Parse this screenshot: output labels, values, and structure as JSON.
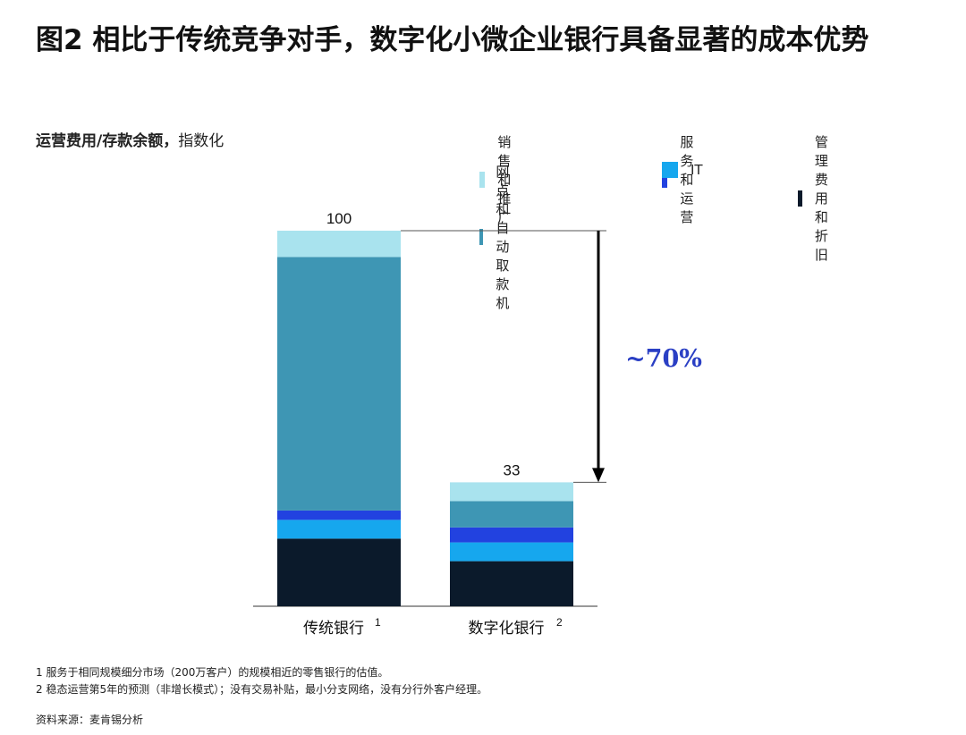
{
  "title": "图2 相比于传统竞争对手，数字化小微企业银行具备显著的成本优势",
  "subtitle_bold": "运营费用/存款余额，",
  "subtitle_rest": "指数化",
  "legend": [
    {
      "label": "销售和推广",
      "color": "#a9e3ee"
    },
    {
      "label": "服务和运营",
      "color": "#2242e0"
    },
    {
      "label": "管理费用和折旧",
      "color": "#0b1a2b"
    },
    {
      "label": "网点和自动取款机",
      "color": "#3e96b4"
    },
    {
      "label": "IT",
      "color": "#16a7ee"
    }
  ],
  "chart_data": {
    "type": "bar",
    "stacked": true,
    "categories": [
      "传统银行",
      "数字化银行"
    ],
    "category_superscripts": [
      "1",
      "2"
    ],
    "totals": [
      100,
      33
    ],
    "total_labels": [
      "100",
      "33"
    ],
    "ylim": [
      0,
      100
    ],
    "series": [
      {
        "name": "管理费用和折旧",
        "color": "#0b1a2b",
        "values": [
          18,
          12
        ]
      },
      {
        "name": "IT",
        "color": "#16a7ee",
        "values": [
          5,
          5
        ]
      },
      {
        "name": "服务和运营",
        "color": "#2242e0",
        "values": [
          2.5,
          4
        ]
      },
      {
        "name": "网点和自动取款机",
        "color": "#3e96b4",
        "values": [
          67.5,
          7
        ]
      },
      {
        "name": "销售和推广",
        "color": "#a9e3ee",
        "values": [
          7,
          5
        ]
      }
    ],
    "annotation": {
      "text": "~70%",
      "color": "#2a3fc4"
    }
  },
  "footnotes": [
    "1 服务于相同规模细分市场（200万客户）的规模相近的零售银行的估值。",
    "2 稳态运营第5年的预测（非增长模式）；没有交易补贴，最小分支网络，没有分行外客户经理。"
  ],
  "source": "资料来源：麦肯锡分析"
}
